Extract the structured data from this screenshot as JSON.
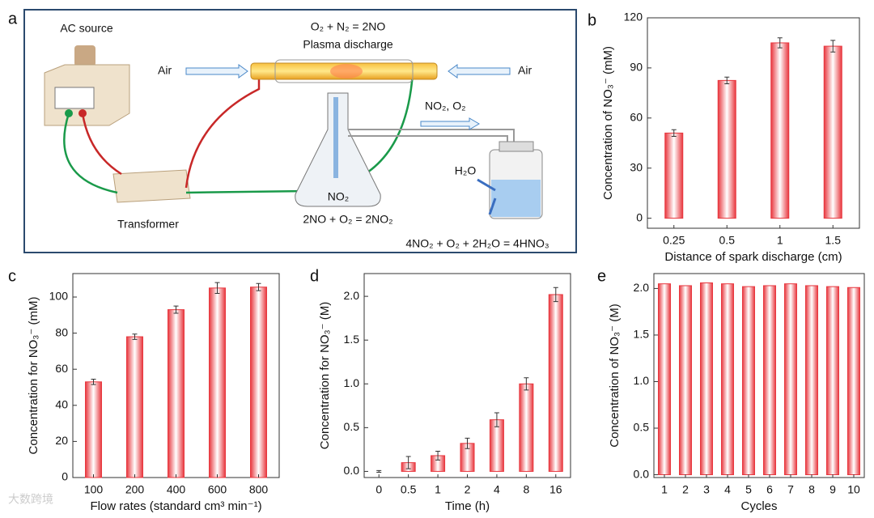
{
  "diagram": {
    "panel": "a",
    "ac_source": "AC source",
    "reaction_top": "O₂ + N₂ = 2NO",
    "plasma": "Plasma discharge",
    "air_left": "Air",
    "air_right": "Air",
    "gas_out": "NO₂, O₂",
    "water": "H₂O",
    "flask_gas": "NO₂",
    "reaction_flask": "2NO + O₂ = 2NO₂",
    "transformer": "Transformer",
    "reaction_bottle": "4NO₂ + O₂ + 2H₂O = 4HNO₃"
  },
  "watermark": "大数跨境",
  "chart_data": [
    {
      "type": "bar",
      "panel": "b",
      "categories": [
        "0.25",
        "0.5",
        "1",
        "1.5"
      ],
      "values": [
        51,
        82.5,
        105,
        103
      ],
      "errors": [
        2,
        2,
        3,
        3.5
      ],
      "color": "#e8373e",
      "ylim": [
        -6,
        120
      ],
      "yticks": [
        0,
        30,
        60,
        90,
        120
      ],
      "xlabel": "Distance of spark discharge (cm)",
      "ylabel": "Concentration of NO₃⁻ (mM)"
    },
    {
      "type": "bar",
      "panel": "c",
      "categories": [
        "100",
        "200",
        "400",
        "600",
        "800"
      ],
      "values": [
        53,
        78,
        93,
        105,
        105.5
      ],
      "errors": [
        1.5,
        1.5,
        2,
        3,
        2
      ],
      "color": "#e8373e",
      "ylim": [
        0,
        113
      ],
      "yticks": [
        0,
        20,
        40,
        60,
        80,
        100
      ],
      "xlabel": "Flow rates (standard cm³ min⁻¹)",
      "ylabel": "Concentration for NO₃⁻ (mM)"
    },
    {
      "type": "bar",
      "panel": "d",
      "categories": [
        "0",
        "0.5",
        "1",
        "2",
        "4",
        "8",
        "16"
      ],
      "values": [
        0,
        0.1,
        0.18,
        0.32,
        0.59,
        1.0,
        2.02
      ],
      "errors": [
        0.01,
        0.07,
        0.05,
        0.06,
        0.08,
        0.07,
        0.08
      ],
      "color": "#e8373e",
      "ylim": [
        -0.07,
        2.26
      ],
      "yticks": [
        {
          "value": 0,
          "label": "0.0"
        },
        0.5,
        {
          "value": 1,
          "label": "1.0"
        },
        1.5,
        {
          "value": 2,
          "label": "2.0"
        }
      ],
      "xlabel": "Time (h)",
      "ylabel": "Concentration for NO₃⁻ (M)"
    },
    {
      "type": "bar",
      "panel": "e",
      "categories": [
        "1",
        "2",
        "3",
        "4",
        "5",
        "6",
        "7",
        "8",
        "9",
        "10"
      ],
      "values": [
        2.05,
        2.03,
        2.06,
        2.05,
        2.02,
        2.03,
        2.05,
        2.03,
        2.02,
        2.01
      ],
      "color": "#e8373e",
      "ylim": [
        -0.03,
        2.16
      ],
      "yticks": [
        {
          "value": 0,
          "label": "0.0"
        },
        0.5,
        {
          "value": 1,
          "label": "1.0"
        },
        1.5,
        {
          "value": 2,
          "label": "2.0"
        }
      ],
      "xlabel": "Cycles",
      "ylabel": "Concentration of NO₃⁻ (M)"
    }
  ]
}
